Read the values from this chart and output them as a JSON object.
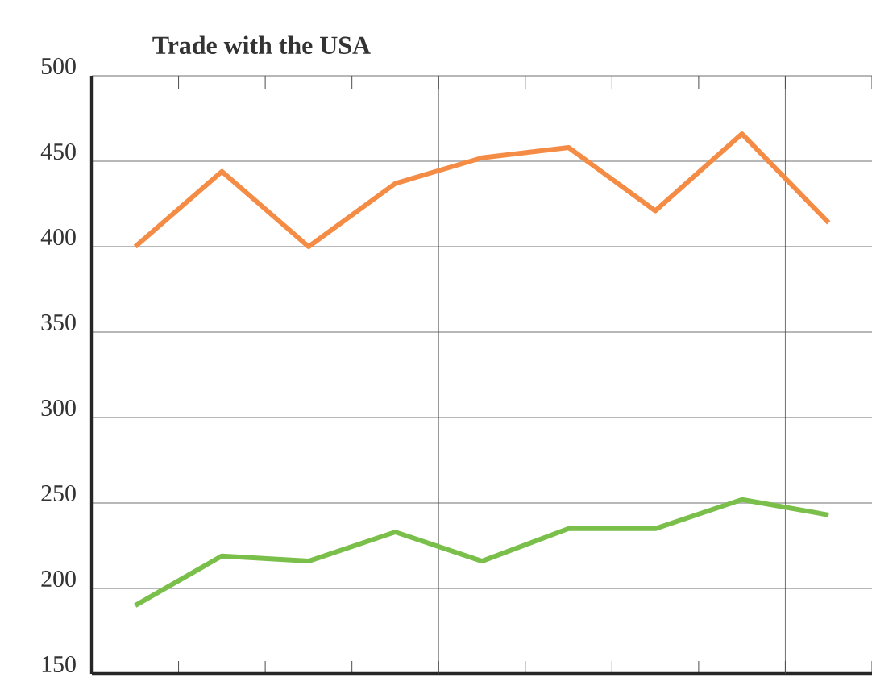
{
  "chart_data": {
    "type": "line",
    "title": "Trade with the USA",
    "categories": [
      null,
      null,
      null,
      null,
      null,
      null,
      null,
      null,
      null
    ],
    "series": [
      {
        "color": "#f58c46",
        "values": [
          400,
          444,
          400,
          437,
          452,
          458,
          421,
          466,
          414
        ]
      },
      {
        "color": "#79bf4a",
        "values": [
          190,
          219,
          216,
          233,
          216,
          235,
          235,
          252,
          243
        ]
      }
    ],
    "ylim": [
      150,
      500
    ],
    "yticks": [
      150,
      200,
      250,
      300,
      350,
      400,
      450,
      500
    ],
    "grid": true,
    "marker": "none",
    "line_style": "solid"
  }
}
